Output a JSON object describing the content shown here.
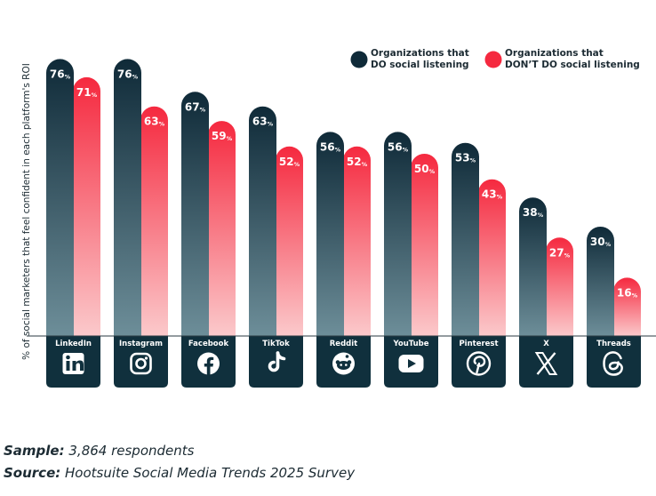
{
  "colors": {
    "dark_top": "#0f2a38",
    "dark_bottom": "#6d8e99",
    "red_top": "#f5293f",
    "red_bottom": "#fbc9cb",
    "label_box": "#10303d"
  },
  "chart_data": {
    "type": "bar",
    "title": "",
    "xlabel": "",
    "ylabel": "% of social marketers that feel confident in each platform's ROI",
    "ylim": [
      0,
      80
    ],
    "legend_position": "top-right",
    "value_suffix": "%",
    "categories": [
      "LinkedIn",
      "Instagram",
      "Facebook",
      "TikTok",
      "Reddit",
      "YouTube",
      "Pinterest",
      "X",
      "Threads"
    ],
    "icons": [
      "linkedin-icon",
      "instagram-icon",
      "facebook-icon",
      "tiktok-icon",
      "reddit-icon",
      "youtube-icon",
      "pinterest-icon",
      "x-icon",
      "threads-icon"
    ],
    "series": [
      {
        "name": "Organizations that DO social listening",
        "legend_lines": [
          "Organizations that",
          "DO social listening"
        ],
        "values": [
          76,
          76,
          67,
          63,
          56,
          56,
          53,
          38,
          30
        ]
      },
      {
        "name": "Organizations that DON'T DO social listening",
        "legend_lines": [
          "Organizations that",
          "DON’T DO social listening"
        ],
        "values": [
          71,
          63,
          59,
          52,
          52,
          50,
          43,
          27,
          16
        ]
      }
    ]
  },
  "footer": {
    "sample_label": "Sample:",
    "sample_text": " 3,864 respondents",
    "source_label": "Source:",
    "source_text": " Hootsuite Social Media Trends 2025 Survey"
  }
}
